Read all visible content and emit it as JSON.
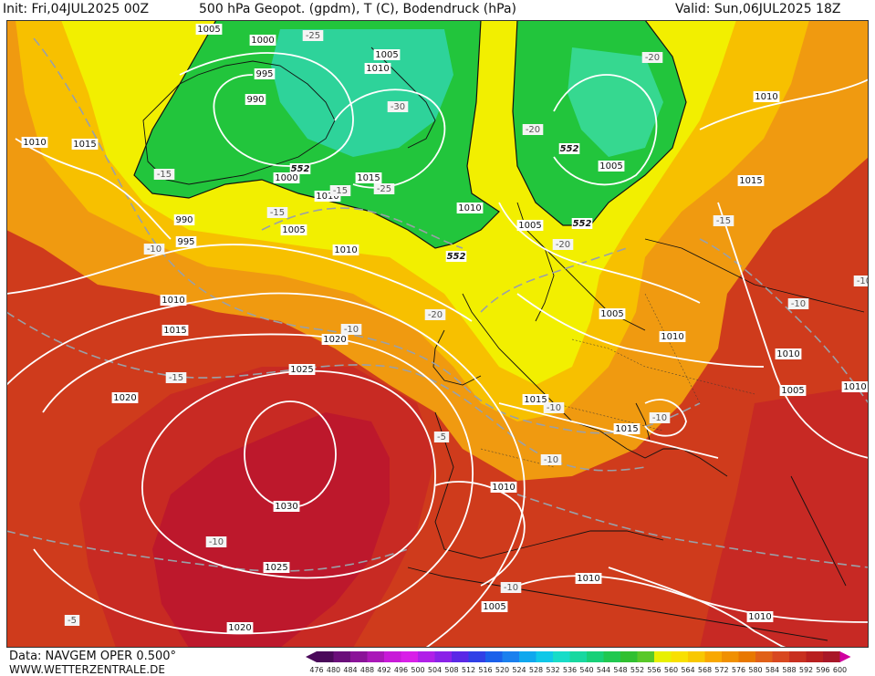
{
  "header": {
    "init": "Init: Fri,04JUL2025 00Z",
    "title": "500 hPa Geopot. (gpdm), T (C), Bodendruck (hPa)",
    "valid": "Valid: Sun,06JUL2025 18Z"
  },
  "footer": {
    "source": "Data: NAVGEM OPER 0.500°",
    "website": "WWW.WETTERZENTRALE.DE"
  },
  "scale": {
    "ticks": [
      "476",
      "480",
      "484",
      "488",
      "492",
      "496",
      "500",
      "504",
      "508",
      "512",
      "516",
      "520",
      "524",
      "528",
      "532",
      "536",
      "540",
      "544",
      "548",
      "552",
      "556",
      "560",
      "564",
      "568",
      "572",
      "576",
      "580",
      "584",
      "588",
      "592",
      "596",
      "600"
    ],
    "colors": [
      "#4a0a5a",
      "#6a0f7a",
      "#8a1398",
      "#aa18b8",
      "#c81ad8",
      "#d820e8",
      "#b020e8",
      "#8a22e8",
      "#5a28e6",
      "#3040e6",
      "#1a60ea",
      "#1a80ee",
      "#10a8ee",
      "#10c8e8",
      "#18dcc8",
      "#18d8a0",
      "#18d078",
      "#20c850",
      "#30c030",
      "#58c828",
      "#e8f000",
      "#f8e000",
      "#f8c800",
      "#f8a800",
      "#f09000",
      "#e87800",
      "#e06018",
      "#d84820",
      "#c83020",
      "#b82020",
      "#a81828",
      "#d000a0"
    ]
  },
  "map": {
    "colors": {
      "green": "#22c53c",
      "teal": "#2ed39a",
      "yellow": "#f2f000",
      "orange": "#f5a000",
      "red": "#cf3b1c",
      "crimson": "#b5122f"
    },
    "pressure_labels": [
      {
        "text": "1005"
      },
      {
        "text": "1000"
      },
      {
        "text": "1005"
      },
      {
        "text": "1010"
      },
      {
        "text": "995"
      },
      {
        "text": "990"
      },
      {
        "text": "1010"
      },
      {
        "text": "1015"
      },
      {
        "text": "990"
      },
      {
        "text": "995"
      },
      {
        "text": "1000"
      },
      {
        "text": "1010"
      },
      {
        "text": "1015"
      },
      {
        "text": "1005"
      },
      {
        "text": "1010"
      },
      {
        "text": "1010"
      },
      {
        "text": "1005"
      },
      {
        "text": "1005"
      },
      {
        "text": "1010"
      },
      {
        "text": "1015"
      },
      {
        "text": "1020"
      },
      {
        "text": "1025"
      },
      {
        "text": "1020"
      },
      {
        "text": "1030"
      },
      {
        "text": "1025"
      },
      {
        "text": "1020"
      },
      {
        "text": "1010"
      },
      {
        "text": "1015"
      },
      {
        "text": "1005"
      },
      {
        "text": "1010"
      },
      {
        "text": "1010"
      },
      {
        "text": "1005"
      },
      {
        "text": "1010"
      },
      {
        "text": "1015"
      },
      {
        "text": "1015"
      },
      {
        "text": "1010"
      },
      {
        "text": "1005"
      },
      {
        "text": "1010"
      },
      {
        "text": "1010"
      }
    ],
    "temp_labels": [
      {
        "text": "-25"
      },
      {
        "text": "-30"
      },
      {
        "text": "-20"
      },
      {
        "text": "-20"
      },
      {
        "text": "-15"
      },
      {
        "text": "-15"
      },
      {
        "text": "-25"
      },
      {
        "text": "-15"
      },
      {
        "text": "-10"
      },
      {
        "text": "-20"
      },
      {
        "text": "-20"
      },
      {
        "text": "-10"
      },
      {
        "text": "-10"
      },
      {
        "text": "-15"
      },
      {
        "text": "-15"
      },
      {
        "text": "-10"
      },
      {
        "text": "-5"
      },
      {
        "text": "-10"
      },
      {
        "text": "-10"
      },
      {
        "text": "-10"
      },
      {
        "text": "-5"
      },
      {
        "text": "-10"
      },
      {
        "text": "-10"
      }
    ],
    "height_labels": [
      {
        "text": "552"
      },
      {
        "text": "552"
      },
      {
        "text": "552"
      },
      {
        "text": "552"
      }
    ]
  }
}
